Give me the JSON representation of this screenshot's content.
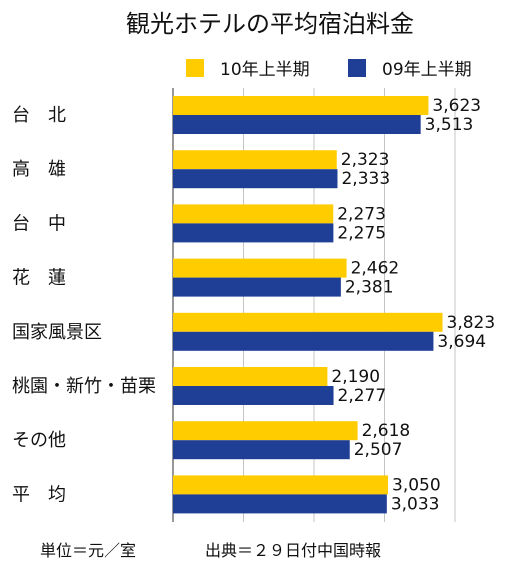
{
  "chart_data": {
    "type": "bar",
    "orientation": "horizontal",
    "title": "観光ホテルの平均宿泊料金",
    "categories": [
      "台　北",
      "高　雄",
      "台　中",
      "花　蓮",
      "国家風景区",
      "桃園・新竹・苗栗",
      "その他",
      "平　均"
    ],
    "series": [
      {
        "name": "10年上半期",
        "color": "#FFCC00",
        "values": [
          3623,
          2323,
          2273,
          2462,
          3823,
          2190,
          2618,
          3050
        ],
        "labels": [
          "3,623",
          "2,323",
          "2,273",
          "2,462",
          "3,823",
          "2,190",
          "2,618",
          "3,050"
        ]
      },
      {
        "name": "09年上半期",
        "color": "#1F3F96",
        "values": [
          3513,
          2333,
          2275,
          2381,
          3694,
          2277,
          2507,
          3033
        ],
        "labels": [
          "3,513",
          "2,333",
          "2,275",
          "2,381",
          "3,694",
          "2,277",
          "2,507",
          "3,033"
        ]
      }
    ],
    "xlim": [
      0,
      4000
    ],
    "grid": true,
    "legend_position": "top"
  },
  "footer": {
    "unit": "単位＝元／室",
    "source": "出典＝２９日付中国時報"
  }
}
